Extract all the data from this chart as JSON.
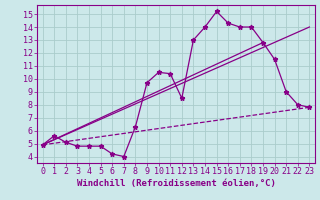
{
  "bg_color": "#cce8ea",
  "line_color": "#880088",
  "grid_color": "#aacccc",
  "xlabel": "Windchill (Refroidissement éolien,°C)",
  "xlabel_fontsize": 6.5,
  "tick_fontsize": 6.0,
  "ylim": [
    3.5,
    15.7
  ],
  "xlim": [
    -0.5,
    23.5
  ],
  "yticks": [
    4,
    5,
    6,
    7,
    8,
    9,
    10,
    11,
    12,
    13,
    14,
    15
  ],
  "xticks": [
    0,
    1,
    2,
    3,
    4,
    5,
    6,
    7,
    8,
    9,
    10,
    11,
    12,
    13,
    14,
    15,
    16,
    17,
    18,
    19,
    20,
    21,
    22,
    23
  ],
  "line1_x": [
    0,
    1,
    2,
    3,
    4,
    5,
    6,
    7,
    8,
    9,
    10,
    11,
    12,
    13,
    14,
    15,
    16,
    17,
    18,
    19,
    20,
    21,
    22,
    23
  ],
  "line1_y": [
    4.9,
    5.6,
    5.1,
    4.8,
    4.8,
    4.8,
    4.2,
    4.0,
    6.3,
    9.7,
    10.5,
    10.4,
    8.5,
    13.0,
    14.0,
    15.2,
    14.3,
    14.0,
    14.0,
    12.8,
    11.5,
    9.0,
    8.0,
    7.8
  ],
  "line2_x": [
    0,
    23
  ],
  "line2_y": [
    4.9,
    14.0
  ],
  "line3_x": [
    0,
    19
  ],
  "line3_y": [
    4.9,
    12.8
  ],
  "line4_x": [
    0,
    23
  ],
  "line4_y": [
    4.9,
    7.8
  ]
}
